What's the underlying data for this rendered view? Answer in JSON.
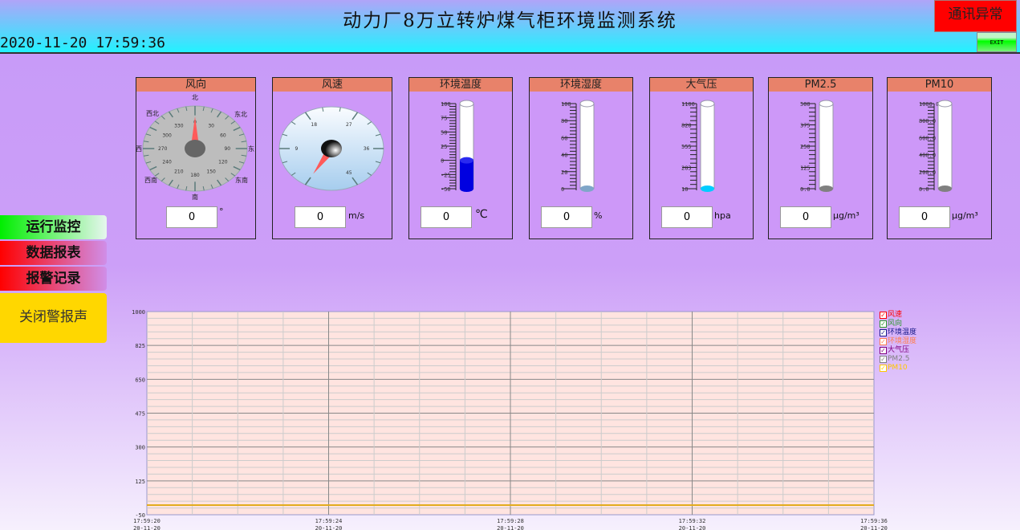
{
  "header": {
    "title": "动力厂8万立转炉煤气柜环境监测系统",
    "datetime": "2020-11-20 17:59:36",
    "comm_status": "通讯异常",
    "exit_label": "EXIT"
  },
  "nav": {
    "items": [
      {
        "label": "运行监控"
      },
      {
        "label": "数据报表"
      },
      {
        "label": "报警记录"
      }
    ],
    "mute_label": "关闭警报声"
  },
  "gauges": {
    "wind_dir": {
      "title": "风向",
      "value": "0",
      "unit": "°",
      "scale": [
        "0",
        "30",
        "60",
        "90",
        "120",
        "150",
        "180",
        "210",
        "240",
        "270",
        "300",
        "330"
      ],
      "directions": [
        "北",
        "东北",
        "东",
        "东南",
        "南",
        "西南",
        "西",
        "西北"
      ],
      "needle_deg": 0
    },
    "wind_speed": {
      "title": "风速",
      "value": "0",
      "unit": "m/s",
      "scale": [
        "9",
        "18",
        "27",
        "36",
        "45"
      ],
      "needle": 0
    },
    "thermos": [
      {
        "title": "环境温度",
        "value": "0",
        "unit": "℃",
        "scale": [
          "100",
          "75",
          "50",
          "25",
          "0",
          "-25",
          "-50"
        ],
        "min": -50,
        "max": 100,
        "level": 0,
        "color": "#0000e0"
      },
      {
        "title": "环境湿度",
        "value": "0",
        "unit": "%",
        "scale": [
          "100",
          "80",
          "60",
          "40",
          "20",
          "0"
        ],
        "min": 0,
        "max": 100,
        "level": 0,
        "color": "#7fa6c8"
      },
      {
        "title": "大气压",
        "value": "0",
        "unit": "hpa",
        "scale": [
          "1100",
          "828",
          "555",
          "283",
          "10"
        ],
        "min": 10,
        "max": 1100,
        "level": 0,
        "color": "#00ccff"
      },
      {
        "title": "PM2.5",
        "value": "0",
        "unit": "μg/m³",
        "scale": [
          "500",
          "375",
          "250",
          "125",
          "0.0"
        ],
        "min": 0,
        "max": 500,
        "level": 0,
        "color": "#808080"
      },
      {
        "title": "PM10",
        "value": "0",
        "unit": "μg/m³",
        "scale": [
          "1000.0",
          "800.0",
          "600.0",
          "400.0",
          "200.0",
          "0.0"
        ],
        "min": 0,
        "max": 1000,
        "level": 0,
        "color": "#808080"
      }
    ]
  },
  "chart_data": {
    "type": "line",
    "ylim": [
      -50,
      1000
    ],
    "yticks": [
      "1000",
      "825",
      "650",
      "475",
      "300",
      "125",
      "-50"
    ],
    "x": [
      {
        "time": "17:59:20",
        "date": "20-11-20"
      },
      {
        "time": "17:59:24",
        "date": "20-11-20"
      },
      {
        "time": "17:59:28",
        "date": "20-11-20"
      },
      {
        "time": "17:59:32",
        "date": "20-11-20"
      },
      {
        "time": "17:59:36",
        "date": "20-11-20"
      }
    ],
    "grid": true,
    "legend_position": "right",
    "series": [
      {
        "name": "风速",
        "color": "#ff0000",
        "values": [
          0,
          0,
          0,
          0,
          0
        ]
      },
      {
        "name": "风向",
        "color": "#2e9a2e",
        "values": [
          0,
          0,
          0,
          0,
          0
        ]
      },
      {
        "name": "环境温度",
        "color": "#1a1a8a",
        "values": [
          0,
          0,
          0,
          0,
          0
        ]
      },
      {
        "name": "环境湿度",
        "color": "#ff7f50",
        "values": [
          0,
          0,
          0,
          0,
          0
        ]
      },
      {
        "name": "大气压",
        "color": "#800080",
        "values": [
          0,
          0,
          0,
          0,
          0
        ]
      },
      {
        "name": "PM2.5",
        "color": "#808080",
        "values": [
          0,
          0,
          0,
          0,
          0
        ]
      },
      {
        "name": "PM10",
        "color": "#ffc800",
        "values": [
          0,
          0,
          0,
          0,
          0
        ]
      }
    ]
  }
}
